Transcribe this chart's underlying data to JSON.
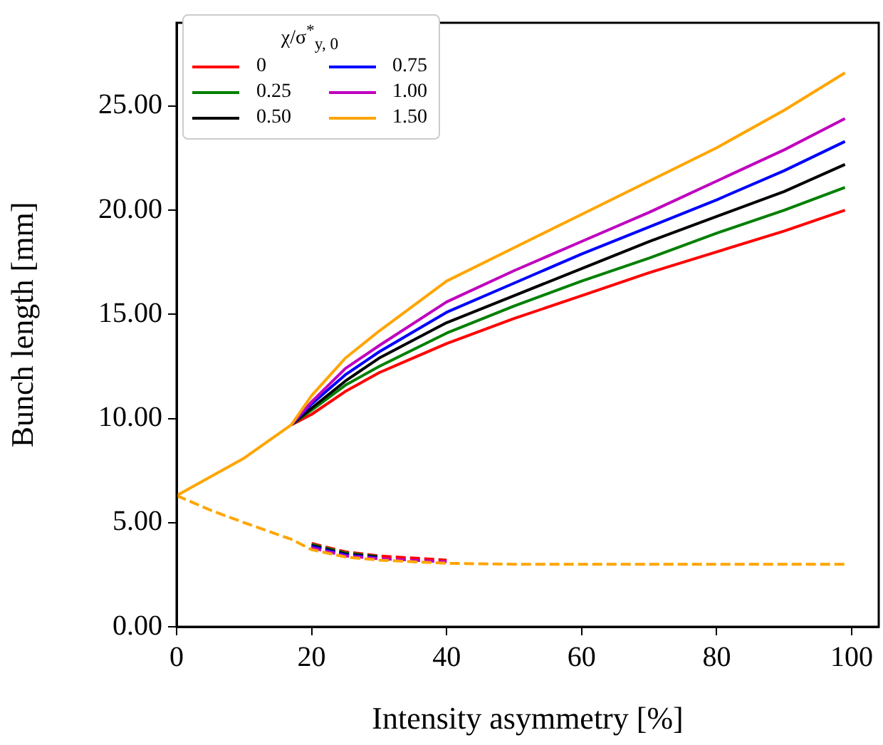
{
  "chart_data": {
    "type": "line",
    "xlabel": "Intensity asymmetry [%]",
    "ylabel": "Bunch length [mm]",
    "legend_title": "χ/σ$^{*}$$_{y, 0}$",
    "legend": "top left",
    "x": [
      0,
      5,
      10,
      17,
      20,
      25,
      30,
      40,
      50,
      60,
      70,
      80,
      90,
      99
    ],
    "xlim": [
      0,
      104
    ],
    "xticks": [
      0,
      20,
      40,
      60,
      80,
      100
    ],
    "ylim": [
      0,
      29
    ],
    "yticks": [
      {
        "value": 0,
        "label": "0.00"
      },
      {
        "value": 5,
        "label": "5.00"
      },
      {
        "value": 10,
        "label": "10.00"
      },
      {
        "value": 15,
        "label": "15.00"
      },
      {
        "value": 20,
        "label": "20.00"
      },
      {
        "value": 25,
        "label": "25.00"
      }
    ],
    "series": [
      {
        "name": "0",
        "color": "#ff0000",
        "line_style": "solid",
        "values": [
          null,
          null,
          null,
          9.7,
          10.2,
          11.3,
          12.2,
          13.6,
          14.8,
          15.9,
          17.0,
          18.0,
          19.0,
          20.0
        ]
      },
      {
        "name": "0.25",
        "color": "#008000",
        "line_style": "solid",
        "values": [
          null,
          null,
          null,
          9.7,
          10.4,
          11.6,
          12.5,
          14.1,
          15.4,
          16.6,
          17.7,
          18.9,
          20.0,
          21.1
        ]
      },
      {
        "name": "0.50",
        "color": "#000000",
        "line_style": "solid",
        "values": [
          null,
          null,
          null,
          9.7,
          10.5,
          11.8,
          12.9,
          14.6,
          15.9,
          17.2,
          18.5,
          19.7,
          20.9,
          22.2
        ]
      },
      {
        "name": "0.75",
        "color": "#0000ff",
        "line_style": "solid",
        "values": [
          null,
          null,
          null,
          9.7,
          10.7,
          12.1,
          13.2,
          15.1,
          16.5,
          17.9,
          19.2,
          20.5,
          21.9,
          23.3
        ]
      },
      {
        "name": "1.00",
        "color": "#bf00bf",
        "line_style": "solid",
        "values": [
          null,
          null,
          null,
          9.7,
          10.8,
          12.4,
          13.5,
          15.6,
          17.1,
          18.5,
          19.9,
          21.4,
          22.9,
          24.4
        ]
      },
      {
        "name": "1.50",
        "color": "#ffa500",
        "line_style": "solid",
        "values": [
          6.3,
          7.2,
          8.1,
          9.7,
          11.1,
          12.9,
          14.2,
          16.6,
          18.2,
          19.8,
          21.4,
          23.0,
          24.8,
          26.6
        ]
      },
      {
        "color": "#ff0000",
        "line_style": "dashed",
        "values": [
          null,
          null,
          null,
          null,
          4.0,
          3.6,
          3.4,
          3.2,
          null,
          null,
          null,
          null,
          null,
          null
        ]
      },
      {
        "color": "#008000",
        "line_style": "dashed",
        "values": [
          null,
          null,
          null,
          null,
          3.95,
          3.55,
          3.37,
          null,
          null,
          null,
          null,
          null,
          null,
          null
        ]
      },
      {
        "color": "#000000",
        "line_style": "dashed",
        "values": [
          null,
          null,
          null,
          null,
          3.9,
          3.5,
          3.34,
          null,
          null,
          null,
          null,
          null,
          null,
          null
        ]
      },
      {
        "color": "#0000ff",
        "line_style": "dashed",
        "values": [
          null,
          null,
          null,
          null,
          3.85,
          3.45,
          3.3,
          null,
          null,
          null,
          null,
          null,
          null,
          null
        ]
      },
      {
        "color": "#bf00bf",
        "line_style": "dashed",
        "values": [
          null,
          null,
          null,
          null,
          3.8,
          3.4,
          3.27,
          3.12,
          null,
          null,
          null,
          null,
          null,
          null
        ]
      },
      {
        "color": "#ffa500",
        "line_style": "dashed",
        "values": [
          6.3,
          5.6,
          5.0,
          4.2,
          3.7,
          3.35,
          3.2,
          3.05,
          3.0,
          3.0,
          3.0,
          3.0,
          3.0,
          3.0
        ]
      }
    ]
  }
}
